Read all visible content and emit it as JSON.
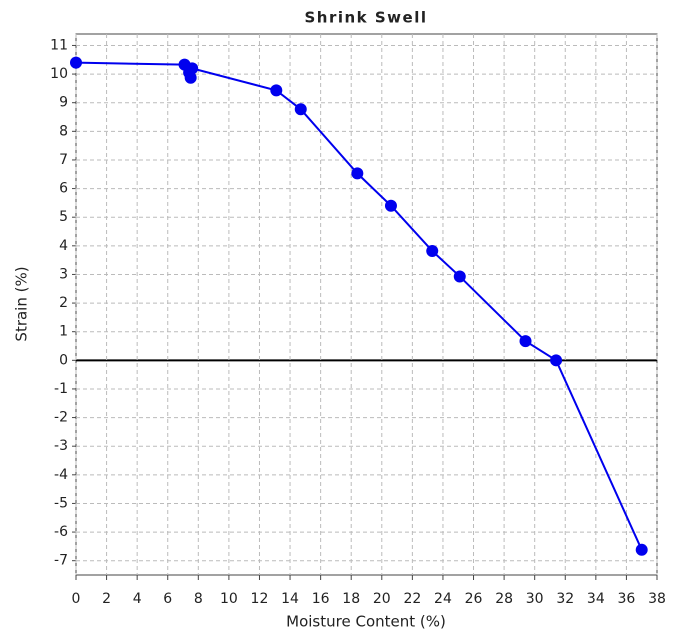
{
  "chart_data": {
    "type": "line",
    "title": "Shrink Swell",
    "x_label": "Moisture Content (%)",
    "y_label": "Strain (%)",
    "series": [
      {
        "color": "#0000ee",
        "x": [
          0,
          7.1,
          7.4,
          7.5,
          7.6,
          13.1,
          14.7,
          18.4,
          20.6,
          23.3,
          25.1,
          29.4,
          31.4,
          37.0
        ],
        "values": [
          10.4,
          10.33,
          10.05,
          9.87,
          10.2,
          9.43,
          8.77,
          6.53,
          5.4,
          3.82,
          2.93,
          0.67,
          0,
          -6.62
        ]
      }
    ],
    "xlim": [
      0,
      38
    ],
    "xticks": [
      0,
      2,
      4,
      6,
      8,
      10,
      12,
      14,
      16,
      18,
      20,
      22,
      24,
      26,
      28,
      30,
      32,
      34,
      36,
      38
    ],
    "ylim": [
      -7.5,
      11.4
    ],
    "yticks": [
      -7,
      -6,
      -5,
      -4,
      -3,
      -2,
      -1,
      0,
      1,
      2,
      3,
      4,
      5,
      6,
      7,
      8,
      9,
      10,
      11
    ],
    "grid": true
  }
}
